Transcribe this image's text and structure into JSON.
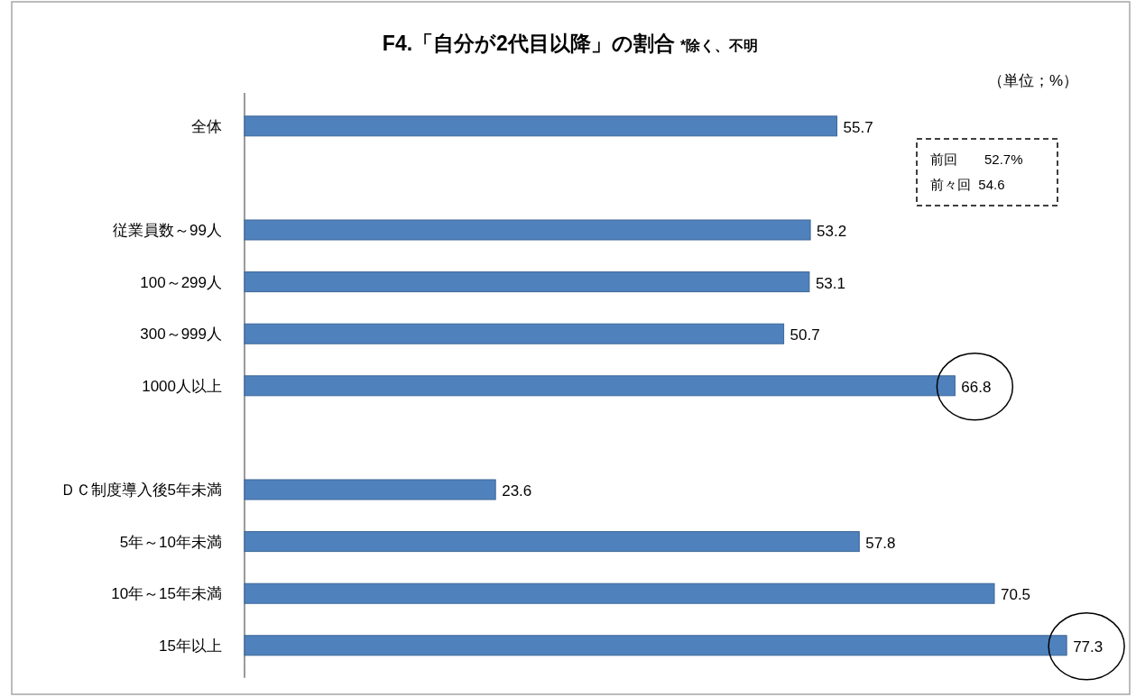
{
  "chart_data": {
    "type": "bar",
    "orientation": "horizontal",
    "title": "F4.「自分が2代目以降」の割合",
    "subtitle": "*除く、不明",
    "categories": [
      "全体",
      null,
      "従業員数～99人",
      "100～299人",
      "300～999人",
      "1000人以上",
      null,
      "ＤＣ制度導入後5年未満",
      "5年～10年未満",
      "10年～15年未満",
      "15年以上"
    ],
    "values": [
      55.7,
      null,
      53.2,
      53.1,
      50.7,
      66.8,
      null,
      23.6,
      57.8,
      70.5,
      77.3
    ],
    "color": "#4f81bd",
    "data_labels": true,
    "annotations": [
      "（単位；%）",
      "前回　　52.7%",
      "前々回  54.6"
    ]
  }
}
